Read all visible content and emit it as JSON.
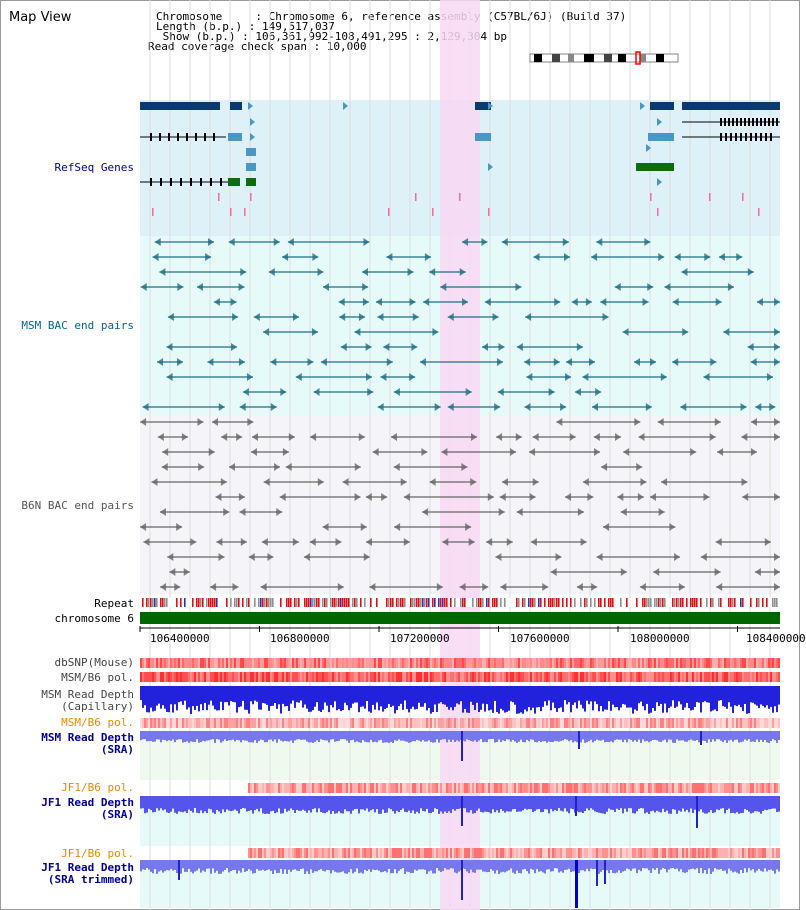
{
  "header": {
    "view_title": "Map View",
    "chromosome_line": "Chromosome     : Chromosome 6, reference assembly (C57BL/6J) (Build 37)",
    "length_line": "Length (b.p.) : 149,517,037",
    "show_line": " Show (b.p.) : 106,361,992-108,491,295 : 2,129,304 bp",
    "coverage_line": "Read coverage check span : 10,000"
  },
  "tracks": {
    "refseq_label": "RefSeq Genes",
    "msm_bac_label": "MSM BAC end pairs",
    "b6n_bac_label": "B6N BAC end pairs",
    "repeat_label": "Repeat",
    "chromosome_label": "chromosome 6",
    "dbsnp_label": "dbSNP(Mouse)",
    "msm_b6_pol_label": "MSM/B6 pol.",
    "msm_read_depth_cap_label_1": "MSM Read Depth",
    "msm_read_depth_cap_label_2": "(Capillary)",
    "msm_b6_pol2_label": "MSM/B6 pol.",
    "msm_read_depth_sra_label_1": "MSM Read Depth",
    "msm_read_depth_sra_label_2": "(SRA)",
    "jf1_b6_pol_label": "JF1/B6 pol.",
    "jf1_read_depth_label_1": "JF1 Read Depth",
    "jf1_read_depth_label_2": "(SRA)",
    "jf1_b6_pol2_label": "JF1/B6 pol.",
    "jf1_read_depth_trim_label_1": "JF1 Read Depth",
    "jf1_read_depth_trim_label_2": "(SRA trimmed)"
  },
  "axis": {
    "ticks": [
      "106400000",
      "106800000",
      "107200000",
      "107600000",
      "108000000",
      "108400000"
    ]
  },
  "colors": {
    "refseq_bg": "#def0f8",
    "msm_bac_bg": "#e6fafa",
    "b6n_bac_bg": "#f5f5f9",
    "highlight": "#f8d8f4",
    "refseq_label": "#000099",
    "msm_label": "#006688",
    "b6n_label": "#555555",
    "pol_label": "#ee8800",
    "depth_label": "#000099",
    "chromosome_bar": "#006600"
  }
}
